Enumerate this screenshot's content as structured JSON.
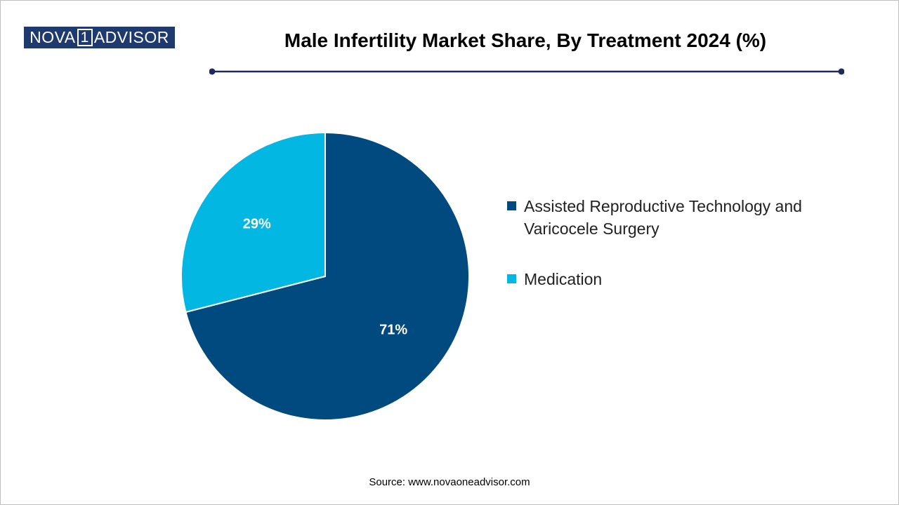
{
  "logo": {
    "part1": "NOVA",
    "part2": "1",
    "part3": "ADVISOR"
  },
  "chart_data": {
    "type": "pie",
    "title": "Male Infertility Market Share, By Treatment 2024 (%)",
    "categories": [
      "Assisted Reproductive Technology and Varicocele Surgery",
      "Medication"
    ],
    "values": [
      71,
      29
    ],
    "labels": [
      "71%",
      "29%"
    ],
    "colors": [
      "#014a7f",
      "#02b7e2"
    ],
    "legend_position": "right"
  },
  "source": "Source: www.novaoneadvisor.com"
}
